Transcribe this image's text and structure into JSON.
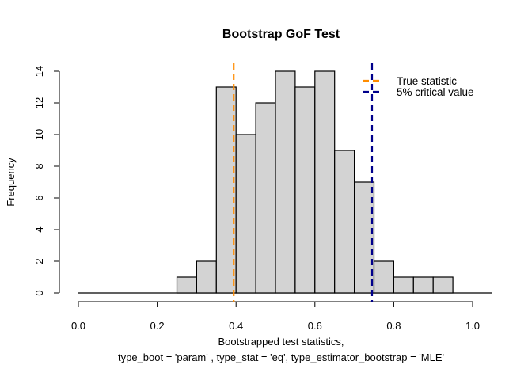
{
  "chart_data": {
    "type": "bar",
    "title": "Bootstrap GoF Test",
    "xlabel_line1": "Bootstrapped test statistics,",
    "xlabel_line2": "type_boot = 'param' , type_stat = 'eq', type_estimator_bootstrap = 'MLE'",
    "ylabel": "Frequency",
    "xlim": [
      0,
      1.05
    ],
    "ylim": [
      0,
      14
    ],
    "x_ticks": [
      "0.0",
      "0.2",
      "0.4",
      "0.6",
      "0.8",
      "1.0"
    ],
    "y_ticks": [
      "0",
      "2",
      "4",
      "6",
      "8",
      "10",
      "12",
      "14"
    ],
    "grid": false,
    "bin_width": 0.05,
    "bins_start": [
      0.25,
      0.3,
      0.35,
      0.4,
      0.45,
      0.5,
      0.55,
      0.6,
      0.65,
      0.7,
      0.75,
      0.8,
      0.85,
      0.9
    ],
    "values": [
      1,
      2,
      13,
      10,
      12,
      14,
      13,
      14,
      9,
      7,
      2,
      1,
      1,
      1
    ],
    "bar_color": "#d3d3d3",
    "vlines": [
      {
        "name": "True statistic",
        "x": 0.394,
        "color": "#ff8c00",
        "style": "dashed"
      },
      {
        "name": "5% critical value",
        "x": 0.745,
        "color": "#00008b",
        "style": "dashed"
      }
    ],
    "legend_position": "top-right"
  }
}
